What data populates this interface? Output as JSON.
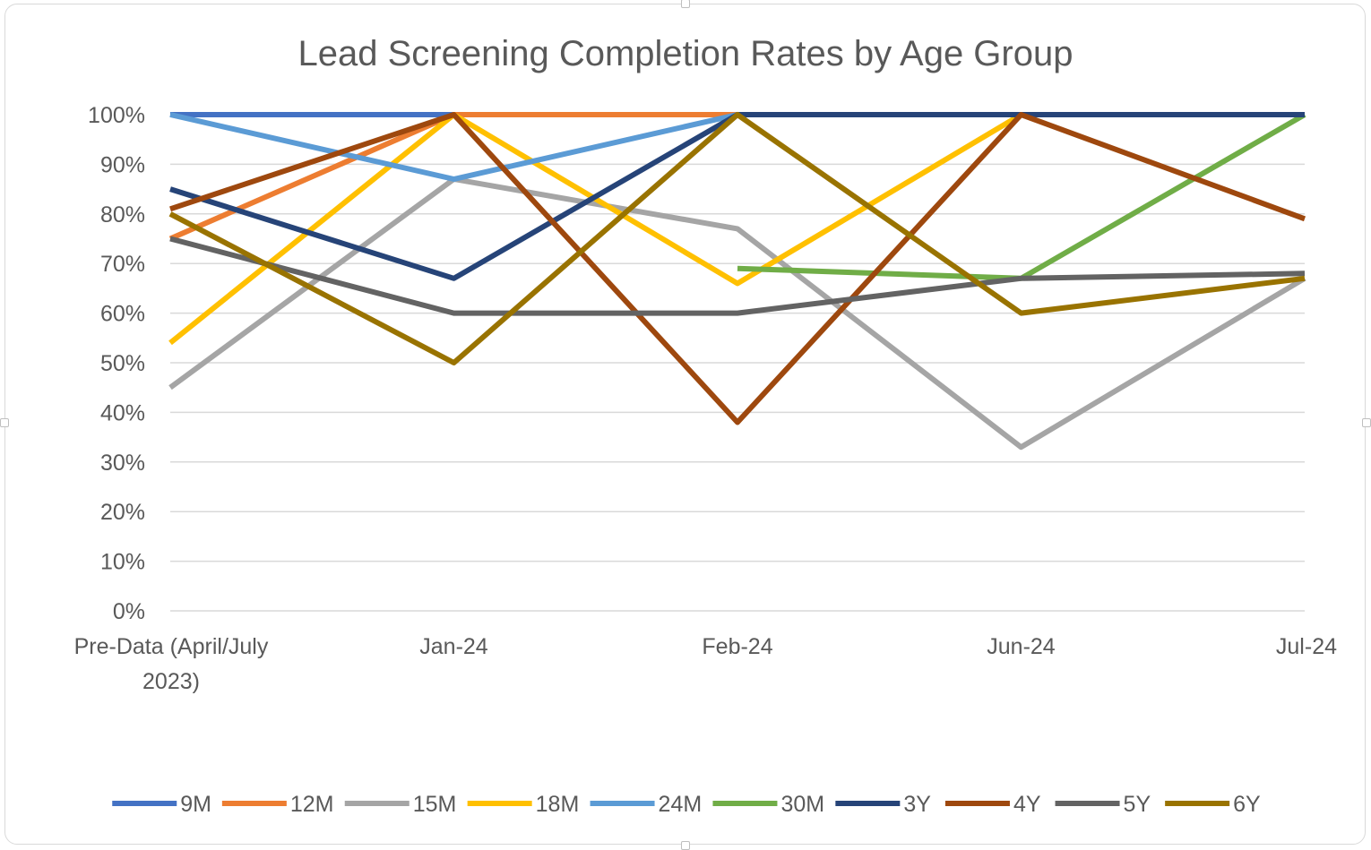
{
  "chart_data": {
    "type": "line",
    "title": "Lead Screening Completion Rates by Age Group",
    "xlabel": "",
    "ylabel": "",
    "categories": [
      "Pre-Data (April/July 2023)",
      "Jan-24",
      "Feb-24",
      "Jun-24",
      "Jul-24"
    ],
    "y_tick_labels": [
      "0%",
      "10%",
      "20%",
      "30%",
      "40%",
      "50%",
      "60%",
      "70%",
      "80%",
      "90%",
      "100%"
    ],
    "ylim": [
      0,
      100
    ],
    "grid": true,
    "legend_position": "bottom",
    "series": [
      {
        "name": "9M",
        "color": "#4472C4",
        "values": [
          100,
          100,
          100,
          100,
          100
        ]
      },
      {
        "name": "12M",
        "color": "#ED7D31",
        "values": [
          75,
          100,
          100,
          100,
          100
        ]
      },
      {
        "name": "15M",
        "color": "#A5A5A5",
        "values": [
          45,
          87,
          77,
          33,
          67
        ]
      },
      {
        "name": "18M",
        "color": "#FFC000",
        "values": [
          54,
          100,
          66,
          100,
          100
        ]
      },
      {
        "name": "24M",
        "color": "#5B9BD5",
        "values": [
          100,
          87,
          100,
          100,
          100
        ]
      },
      {
        "name": "30M",
        "color": "#70AD47",
        "values": [
          null,
          null,
          69,
          67,
          100
        ]
      },
      {
        "name": "3Y",
        "color": "#264478",
        "values": [
          85,
          67,
          100,
          100,
          100
        ]
      },
      {
        "name": "4Y",
        "color": "#9E480E",
        "values": [
          81,
          100,
          38,
          100,
          79
        ]
      },
      {
        "name": "5Y",
        "color": "#636363",
        "values": [
          75,
          60,
          60,
          67,
          68
        ]
      },
      {
        "name": "6Y",
        "color": "#997300",
        "values": [
          80,
          50,
          100,
          60,
          67
        ]
      }
    ]
  }
}
